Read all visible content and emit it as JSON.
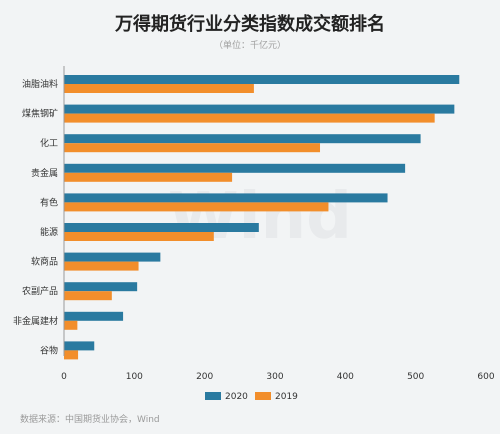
{
  "chart_data": {
    "type": "bar",
    "orientation": "horizontal",
    "title": "万得期货行业分类指数成交额排名",
    "subtitle": "（单位：千亿元）",
    "source": "数据来源：中国期货业协会，Wind",
    "watermark": "Wind",
    "categories": [
      "油脂油料",
      "煤焦钢矿",
      "化工",
      "贵金属",
      "有色",
      "能源",
      "软商品",
      "农副产品",
      "非金属建材",
      "谷物"
    ],
    "series": [
      {
        "name": "2020",
        "color": "#2a7aa0",
        "values": [
          562,
          555,
          507,
          485,
          460,
          277,
          137,
          104,
          84,
          43
        ]
      },
      {
        "name": "2019",
        "color": "#f28e2b",
        "values": [
          270,
          527,
          364,
          239,
          376,
          213,
          106,
          68,
          19,
          20
        ]
      }
    ],
    "xlim": [
      0,
      600
    ],
    "xticks": [
      0,
      100,
      200,
      300,
      400,
      500,
      600
    ],
    "grid": false,
    "legend_position": "bottom"
  }
}
